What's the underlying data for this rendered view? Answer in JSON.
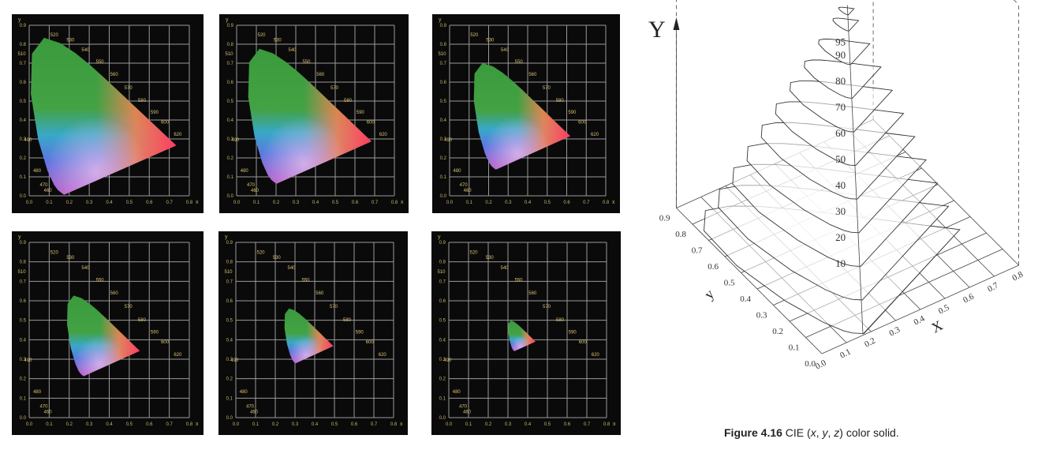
{
  "panels": {
    "x_label": "x",
    "y_label": "y",
    "x_ticks": [
      "0.0",
      "0.1",
      "0.2",
      "0.3",
      "0.4",
      "0.5",
      "0.6",
      "0.7",
      "0.8"
    ],
    "y_ticks": [
      "0.0",
      "0.1",
      "0.2",
      "0.3",
      "0.4",
      "0.5",
      "0.6",
      "0.7",
      "0.8",
      "0.9"
    ],
    "wavelengths": [
      "460",
      "470",
      "480",
      "490",
      "510",
      "520",
      "530",
      "540",
      "550",
      "560",
      "570",
      "580",
      "590",
      "600",
      "620"
    ]
  },
  "solid": {
    "vertical_label": "Y",
    "x_label": "X",
    "y_label": "y",
    "x_ticks": [
      "0.0",
      "0.1",
      "0.2",
      "0.3",
      "0.4",
      "0.5",
      "0.6",
      "0.7",
      "0.8"
    ],
    "y_ticks": [
      "0.0",
      "0.1",
      "0.2",
      "0.3",
      "0.4",
      "0.5",
      "0.6",
      "0.7",
      "0.8",
      "0.9"
    ],
    "levels": [
      "10",
      "20",
      "30",
      "40",
      "50",
      "60",
      "70",
      "80",
      "90",
      "95"
    ]
  },
  "caption": {
    "label": "Figure 4.16",
    "parts": [
      " CIE (",
      "x",
      ", ",
      "y",
      ", ",
      "z",
      ") color solid."
    ]
  }
}
